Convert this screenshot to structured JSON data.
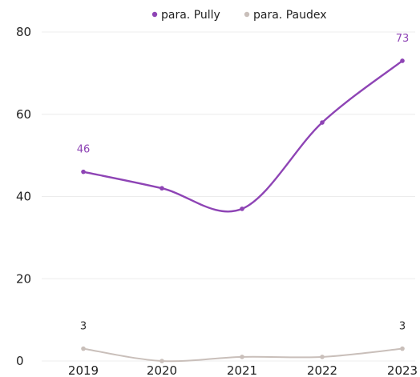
{
  "chart_data": {
    "type": "line",
    "x": [
      "2019",
      "2020",
      "2021",
      "2022",
      "2023"
    ],
    "series": [
      {
        "name": "para. Pully",
        "color": "#8e44b5",
        "values": [
          46,
          42,
          37,
          58,
          73
        ],
        "labels": [
          {
            "index": 0,
            "text": "46"
          },
          {
            "index": 4,
            "text": "73"
          }
        ]
      },
      {
        "name": "para. Paudex",
        "color": "#c9bfba",
        "values": [
          3,
          0,
          1,
          1,
          3
        ],
        "labels": [
          {
            "index": 0,
            "text": "3"
          },
          {
            "index": 4,
            "text": "3"
          }
        ]
      }
    ],
    "ylim": [
      0,
      80
    ],
    "yticks": [
      "0",
      "20",
      "40",
      "60",
      "80"
    ],
    "grid": true,
    "legend_position": "top-center",
    "title": "",
    "xlabel": "",
    "ylabel": ""
  }
}
